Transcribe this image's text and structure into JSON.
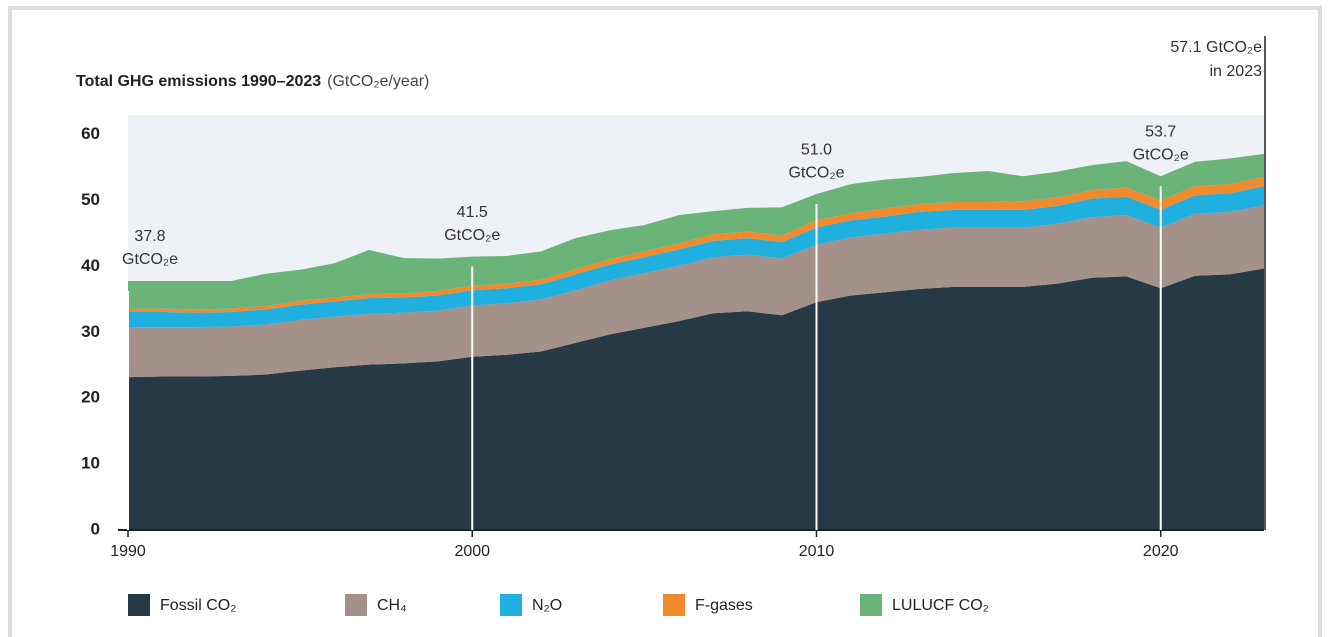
{
  "chart_data": {
    "type": "stacked_area",
    "title": "Total GHG emissions 1990–2023",
    "y_label": "(GtCO₂e/year)",
    "x": [
      1990,
      1991,
      1992,
      1993,
      1994,
      1995,
      1996,
      1997,
      1998,
      1999,
      2000,
      2001,
      2002,
      2003,
      2004,
      2005,
      2006,
      2007,
      2008,
      2009,
      2010,
      2011,
      2012,
      2013,
      2014,
      2015,
      2016,
      2017,
      2018,
      2019,
      2020,
      2021,
      2022,
      2023
    ],
    "series": [
      {
        "name": "Fossil CO₂",
        "color": "#263a45",
        "values": [
          23.2,
          23.3,
          23.3,
          23.4,
          23.6,
          24.2,
          24.7,
          25.1,
          25.3,
          25.6,
          26.3,
          26.6,
          27.1,
          28.4,
          29.7,
          30.7,
          31.7,
          32.9,
          33.2,
          32.6,
          34.6,
          35.6,
          36.1,
          36.6,
          36.9,
          36.9,
          36.9,
          37.4,
          38.3,
          38.5,
          36.7,
          38.6,
          38.8,
          39.7
        ]
      },
      {
        "name": "CH₄",
        "color": "#a4918a",
        "values": [
          7.6,
          7.5,
          7.5,
          7.5,
          7.6,
          7.7,
          7.7,
          7.7,
          7.7,
          7.7,
          7.8,
          7.8,
          7.9,
          8.0,
          8.2,
          8.3,
          8.4,
          8.5,
          8.6,
          8.6,
          8.7,
          8.8,
          8.9,
          9.0,
          9.0,
          9.0,
          9.0,
          9.1,
          9.2,
          9.3,
          9.2,
          9.4,
          9.5,
          9.6
        ]
      },
      {
        "name": "N₂O",
        "color": "#1fb0e0",
        "values": [
          2.3,
          2.3,
          2.2,
          2.2,
          2.3,
          2.3,
          2.3,
          2.4,
          2.3,
          2.3,
          2.3,
          2.3,
          2.3,
          2.4,
          2.4,
          2.4,
          2.5,
          2.5,
          2.5,
          2.5,
          2.6,
          2.6,
          2.6,
          2.7,
          2.7,
          2.7,
          2.7,
          2.7,
          2.8,
          2.8,
          2.7,
          2.8,
          2.8,
          2.9
        ]
      },
      {
        "name": "F-gases",
        "color": "#f08a2c",
        "values": [
          0.5,
          0.5,
          0.5,
          0.5,
          0.5,
          0.6,
          0.6,
          0.6,
          0.6,
          0.7,
          0.7,
          0.7,
          0.7,
          0.8,
          0.8,
          0.9,
          0.9,
          1.0,
          1.0,
          1.0,
          1.1,
          1.1,
          1.2,
          1.2,
          1.2,
          1.2,
          1.3,
          1.3,
          1.3,
          1.4,
          1.4,
          1.4,
          1.4,
          1.4
        ]
      },
      {
        "name": "LULUCF CO₂",
        "color": "#6ab47a",
        "values": [
          4.2,
          4.2,
          4.3,
          4.2,
          4.9,
          4.7,
          5.2,
          6.7,
          5.4,
          4.9,
          4.4,
          4.2,
          4.3,
          4.7,
          4.4,
          4.0,
          4.3,
          3.5,
          3.6,
          4.3,
          4.0,
          4.4,
          4.4,
          4.1,
          4.4,
          4.7,
          3.8,
          3.9,
          3.8,
          4.0,
          3.7,
          3.7,
          3.9,
          3.5
        ]
      }
    ],
    "xlim": [
      1990,
      2023
    ],
    "xticks": [
      1990,
      2000,
      2010,
      2020
    ],
    "ylim": [
      0,
      63
    ],
    "yticks": [
      0,
      10,
      20,
      30,
      40,
      50,
      60
    ],
    "annotations": [
      {
        "x": 1990,
        "lines": [
          "37.8",
          "GtCO₂e"
        ]
      },
      {
        "x": 2000,
        "lines": [
          "41.5",
          "GtCO₂e"
        ]
      },
      {
        "x": 2010,
        "lines": [
          "51.0",
          "GtCO₂e"
        ]
      },
      {
        "x": 2020,
        "lines": [
          "53.7",
          "GtCO₂e"
        ]
      },
      {
        "x": 2023,
        "lines": [
          "57.1 GtCO₂e",
          "in 2023"
        ]
      }
    ]
  }
}
